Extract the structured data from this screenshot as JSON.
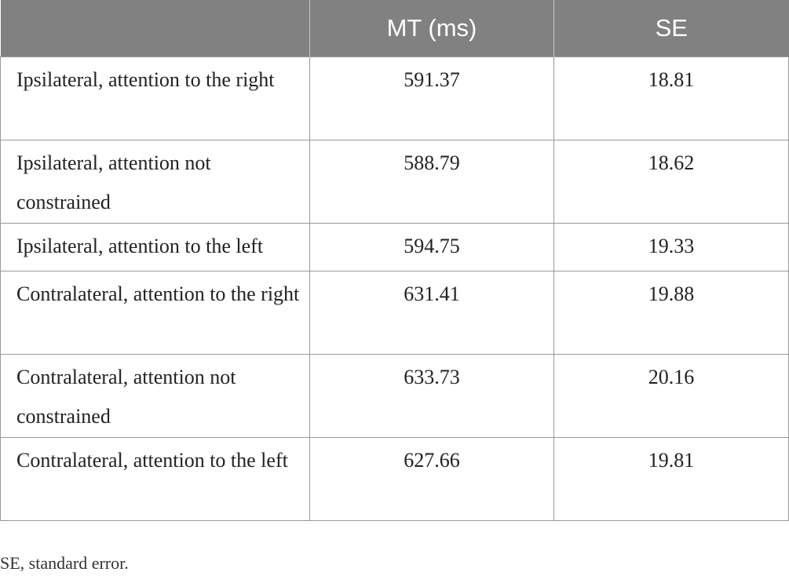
{
  "table": {
    "headers": [
      "",
      "MT (ms)",
      "SE"
    ],
    "rows": [
      {
        "condition": "Ipsilateral, attention to the right",
        "mt": "591.37",
        "se": "18.81"
      },
      {
        "condition": "Ipsilateral, attention not constrained",
        "mt": "588.79",
        "se": "18.62"
      },
      {
        "condition": "Ipsilateral, attention to the left",
        "mt": "594.75",
        "se": "19.33"
      },
      {
        "condition": "Contralateral, attention to the right",
        "mt": "631.41",
        "se": "19.88"
      },
      {
        "condition": "Contralateral, attention not constrained",
        "mt": "633.73",
        "se": "20.16"
      },
      {
        "condition": "Contralateral, attention to the left",
        "mt": "627.66",
        "se": "19.81"
      }
    ]
  },
  "footnote": "SE, standard error.",
  "colors": {
    "header_bg": "#818181",
    "header_text": "#ffffff",
    "border": "#9a9a9a"
  }
}
